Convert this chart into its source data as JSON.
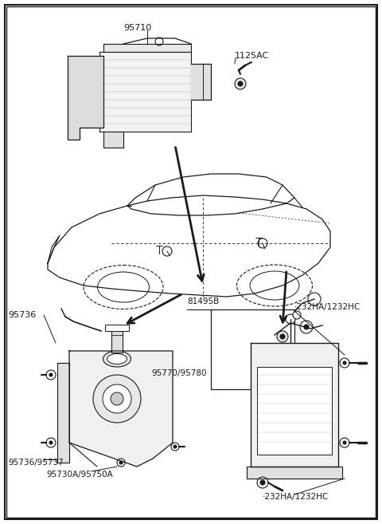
{
  "background_color": "#ffffff",
  "line_color": "#1a1a1a",
  "labels": {
    "top_part": "95710",
    "top_right": "1125AC",
    "mid_left": "95736",
    "mid_right_top": "·232HA/1232HC",
    "bracket": "81495B",
    "center_label": "95770/95780",
    "bot_left1": "95736/95737",
    "bot_left2": "95730A/95750A",
    "bot_right": "·232HA/1232HC"
  },
  "fig_width": 4.8,
  "fig_height": 6.57,
  "dpi": 100
}
